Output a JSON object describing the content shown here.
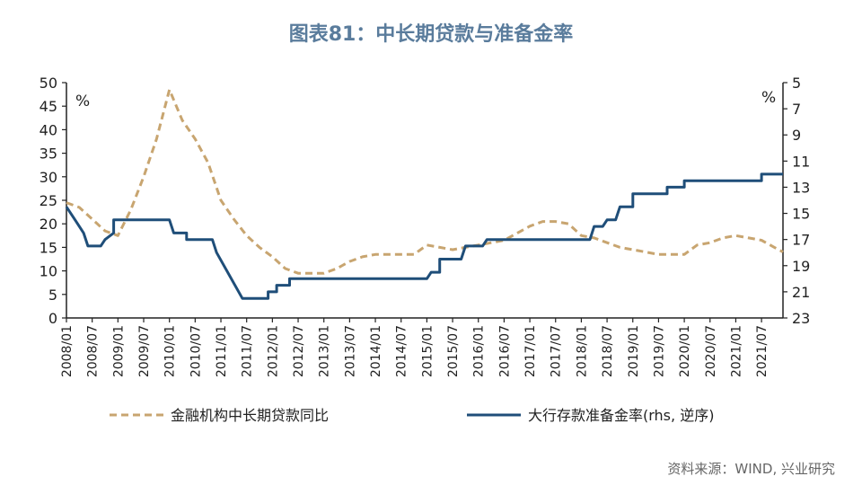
{
  "chart_data": {
    "type": "line",
    "title": "图表81：中长期贷款与准备金率",
    "source": "资料来源：WIND, 兴业研究",
    "left_unit": "%",
    "right_unit": "%",
    "x_ticks": [
      "2008/01",
      "2008/07",
      "2009/01",
      "2009/07",
      "2010/01",
      "2010/07",
      "2011/01",
      "2011/07",
      "2012/01",
      "2012/07",
      "2013/01",
      "2013/07",
      "2014/01",
      "2014/07",
      "2015/01",
      "2015/07",
      "2016/01",
      "2016/07",
      "2017/01",
      "2017/07",
      "2018/01",
      "2018/07",
      "2019/01",
      "2019/07",
      "2020/01",
      "2020/07",
      "2021/01",
      "2021/07"
    ],
    "y_left": {
      "range": [
        0,
        50
      ],
      "ticks": [
        0,
        5,
        10,
        15,
        20,
        25,
        30,
        35,
        40,
        45,
        50
      ]
    },
    "y_right": {
      "range": [
        23,
        5
      ],
      "ticks": [
        5,
        7,
        9,
        11,
        13,
        15,
        17,
        19,
        21,
        23
      ],
      "inverted": true
    },
    "colors": {
      "loans": "#c8a570",
      "rrr": "#1f4e79"
    },
    "series": [
      {
        "name": "金融机构中长期贷款同比",
        "axis": "left",
        "style": "dashed",
        "points": [
          [
            "2008/01",
            24.5
          ],
          [
            "2008/04",
            23.5
          ],
          [
            "2008/07",
            21.0
          ],
          [
            "2008/10",
            18.5
          ],
          [
            "2009/01",
            17.5
          ],
          [
            "2009/04",
            23.0
          ],
          [
            "2009/07",
            30.0
          ],
          [
            "2009/10",
            38.0
          ],
          [
            "2010/01",
            48.5
          ],
          [
            "2010/04",
            42.0
          ],
          [
            "2010/07",
            38.0
          ],
          [
            "2010/10",
            33.0
          ],
          [
            "2011/01",
            25.0
          ],
          [
            "2011/04",
            21.0
          ],
          [
            "2011/07",
            17.5
          ],
          [
            "2011/10",
            15.0
          ],
          [
            "2012/01",
            13.0
          ],
          [
            "2012/04",
            10.5
          ],
          [
            "2012/07",
            9.5
          ],
          [
            "2012/10",
            9.5
          ],
          [
            "2013/01",
            9.5
          ],
          [
            "2013/04",
            10.5
          ],
          [
            "2013/07",
            12.0
          ],
          [
            "2013/10",
            13.0
          ],
          [
            "2014/01",
            13.5
          ],
          [
            "2014/04",
            13.5
          ],
          [
            "2014/07",
            13.5
          ],
          [
            "2014/10",
            13.5
          ],
          [
            "2015/01",
            15.5
          ],
          [
            "2015/04",
            15.0
          ],
          [
            "2015/07",
            14.5
          ],
          [
            "2015/10",
            15.0
          ],
          [
            "2016/01",
            15.5
          ],
          [
            "2016/04",
            16.0
          ],
          [
            "2016/07",
            16.5
          ],
          [
            "2016/10",
            18.0
          ],
          [
            "2017/01",
            19.5
          ],
          [
            "2017/04",
            20.5
          ],
          [
            "2017/07",
            20.5
          ],
          [
            "2017/10",
            20.0
          ],
          [
            "2018/01",
            17.5
          ],
          [
            "2018/04",
            17.0
          ],
          [
            "2018/07",
            16.0
          ],
          [
            "2018/10",
            15.0
          ],
          [
            "2019/01",
            14.5
          ],
          [
            "2019/04",
            14.0
          ],
          [
            "2019/07",
            13.5
          ],
          [
            "2019/10",
            13.5
          ],
          [
            "2020/01",
            13.5
          ],
          [
            "2020/04",
            15.5
          ],
          [
            "2020/07",
            16.0
          ],
          [
            "2020/10",
            17.0
          ],
          [
            "2021/01",
            17.5
          ],
          [
            "2021/04",
            17.0
          ],
          [
            "2021/07",
            16.5
          ],
          [
            "2021/10",
            15.0
          ],
          [
            "2021/12",
            14.0
          ]
        ]
      },
      {
        "name": "大行存款准备金率(rhs, 逆序)",
        "axis": "right",
        "style": "solid",
        "points": [
          [
            "2008/01",
            14.5
          ],
          [
            "2008/03",
            15.5
          ],
          [
            "2008/05",
            16.5
          ],
          [
            "2008/06",
            17.5
          ],
          [
            "2008/09",
            17.5
          ],
          [
            "2008/10",
            17.0
          ],
          [
            "2008/12",
            16.5
          ],
          [
            "2008/12",
            15.5
          ],
          [
            "2009/01",
            15.5
          ],
          [
            "2010/01",
            15.5
          ],
          [
            "2010/02",
            16.5
          ],
          [
            "2010/05",
            16.5
          ],
          [
            "2010/05",
            17.0
          ],
          [
            "2010/11",
            17.0
          ],
          [
            "2010/12",
            18.0
          ],
          [
            "2011/06",
            21.5
          ],
          [
            "2011/12",
            21.5
          ],
          [
            "2011/12",
            21.0
          ],
          [
            "2012/02",
            21.0
          ],
          [
            "2012/02",
            20.5
          ],
          [
            "2012/05",
            20.5
          ],
          [
            "2012/05",
            20.0
          ],
          [
            "2015/01",
            20.0
          ],
          [
            "2015/02",
            19.5
          ],
          [
            "2015/04",
            19.5
          ],
          [
            "2015/04",
            18.5
          ],
          [
            "2015/09",
            18.5
          ],
          [
            "2015/10",
            17.5
          ],
          [
            "2016/02",
            17.5
          ],
          [
            "2016/03",
            17.0
          ],
          [
            "2018/03",
            17.0
          ],
          [
            "2018/04",
            16.0
          ],
          [
            "2018/06",
            16.0
          ],
          [
            "2018/07",
            15.5
          ],
          [
            "2018/09",
            15.5
          ],
          [
            "2018/10",
            14.5
          ],
          [
            "2019/01",
            14.5
          ],
          [
            "2019/01",
            13.5
          ],
          [
            "2019/09",
            13.5
          ],
          [
            "2019/09",
            13.0
          ],
          [
            "2020/01",
            13.0
          ],
          [
            "2020/01",
            12.5
          ],
          [
            "2021/07",
            12.5
          ],
          [
            "2021/07",
            12.0
          ],
          [
            "2021/12",
            12.0
          ]
        ]
      }
    ]
  }
}
